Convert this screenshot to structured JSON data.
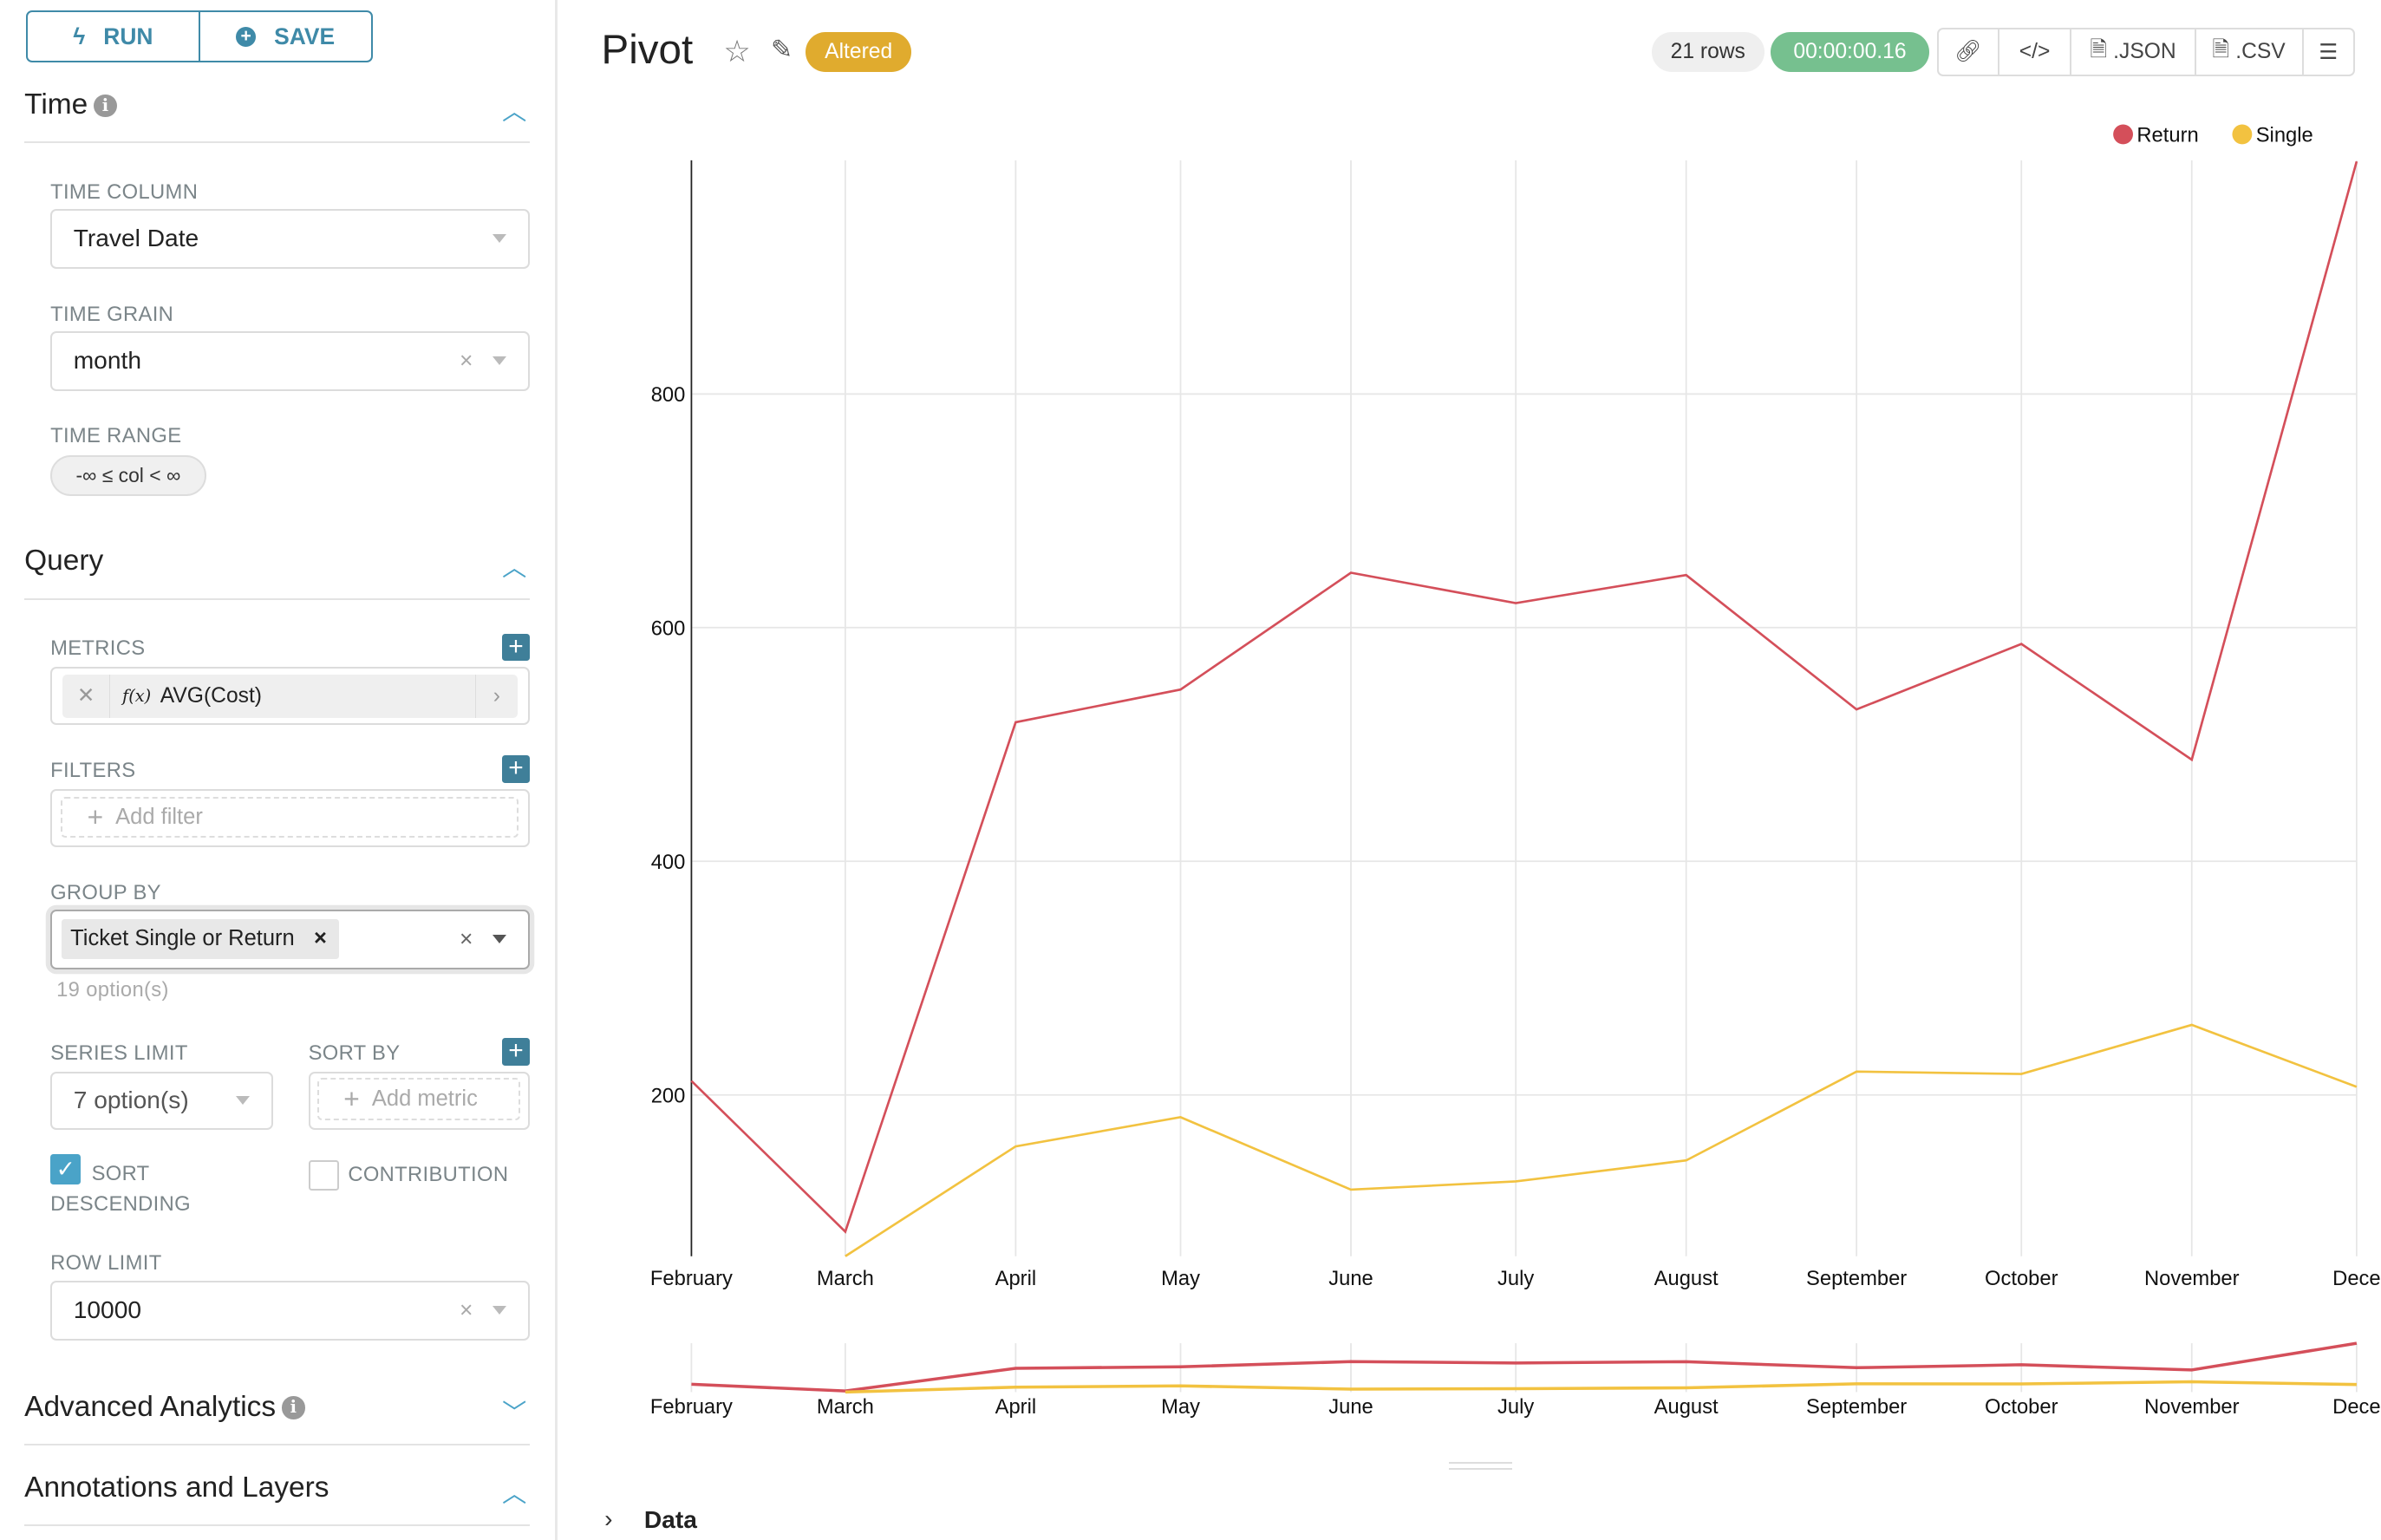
{
  "sidebar": {
    "run_label": "RUN",
    "save_label": "SAVE",
    "time": {
      "title": "Time",
      "time_column_label": "TIME COLUMN",
      "time_column_value": "Travel Date",
      "time_grain_label": "TIME GRAIN",
      "time_grain_value": "month",
      "time_range_label": "TIME RANGE",
      "time_range_value": "-∞ ≤ col < ∞"
    },
    "query": {
      "title": "Query",
      "metrics_label": "METRICS",
      "metric_value": "AVG(Cost)",
      "metric_fx": "f(x)",
      "filters_label": "FILTERS",
      "add_filter": "Add filter",
      "group_by_label": "GROUP BY",
      "group_by_tag": "Ticket Single or Return",
      "group_by_hint": "19 option(s)",
      "series_limit_label": "SERIES LIMIT",
      "series_limit_value": "7 option(s)",
      "sort_by_label": "SORT BY",
      "add_metric": "Add metric",
      "sort_desc_label": "SORT DESCENDING",
      "sort_desc_checked": true,
      "contribution_label": "CONTRIBUTION",
      "contribution_checked": false,
      "row_limit_label": "ROW LIMIT",
      "row_limit_value": "10000"
    },
    "advanced_title": "Advanced Analytics",
    "annotations_title": "Annotations and Layers"
  },
  "header": {
    "title": "Pivot",
    "altered_badge": "Altered",
    "rows": "21 rows",
    "duration": "00:00:00.16",
    "json_label": ".JSON",
    "csv_label": ".CSV"
  },
  "data_section": "Data",
  "colors": {
    "accent": "#3f8aa8",
    "return": "#d44f5a",
    "single": "#f2c240",
    "success": "#76c08f",
    "altered": "#e0ab2e"
  },
  "chart_data": {
    "type": "line",
    "x": [
      "February",
      "March",
      "April",
      "May",
      "June",
      "July",
      "August",
      "September",
      "October",
      "November",
      "December"
    ],
    "x_tick_labels": [
      "February",
      "March",
      "April",
      "May",
      "June",
      "July",
      "August",
      "September",
      "October",
      "November",
      "Dece"
    ],
    "series": [
      {
        "name": "Return",
        "values": [
          212,
          83,
          519,
          547,
          647,
          621,
          645,
          530,
          586,
          487,
          999
        ]
      },
      {
        "name": "Single",
        "values": [
          null,
          62,
          156,
          181,
          119,
          126,
          144,
          220,
          218,
          260,
          207
        ]
      }
    ],
    "y_ticks": [
      200,
      400,
      600,
      800
    ],
    "ylim": [
      62,
      1000
    ],
    "legend": "top-right",
    "grid": true,
    "brush_navigator": true
  }
}
